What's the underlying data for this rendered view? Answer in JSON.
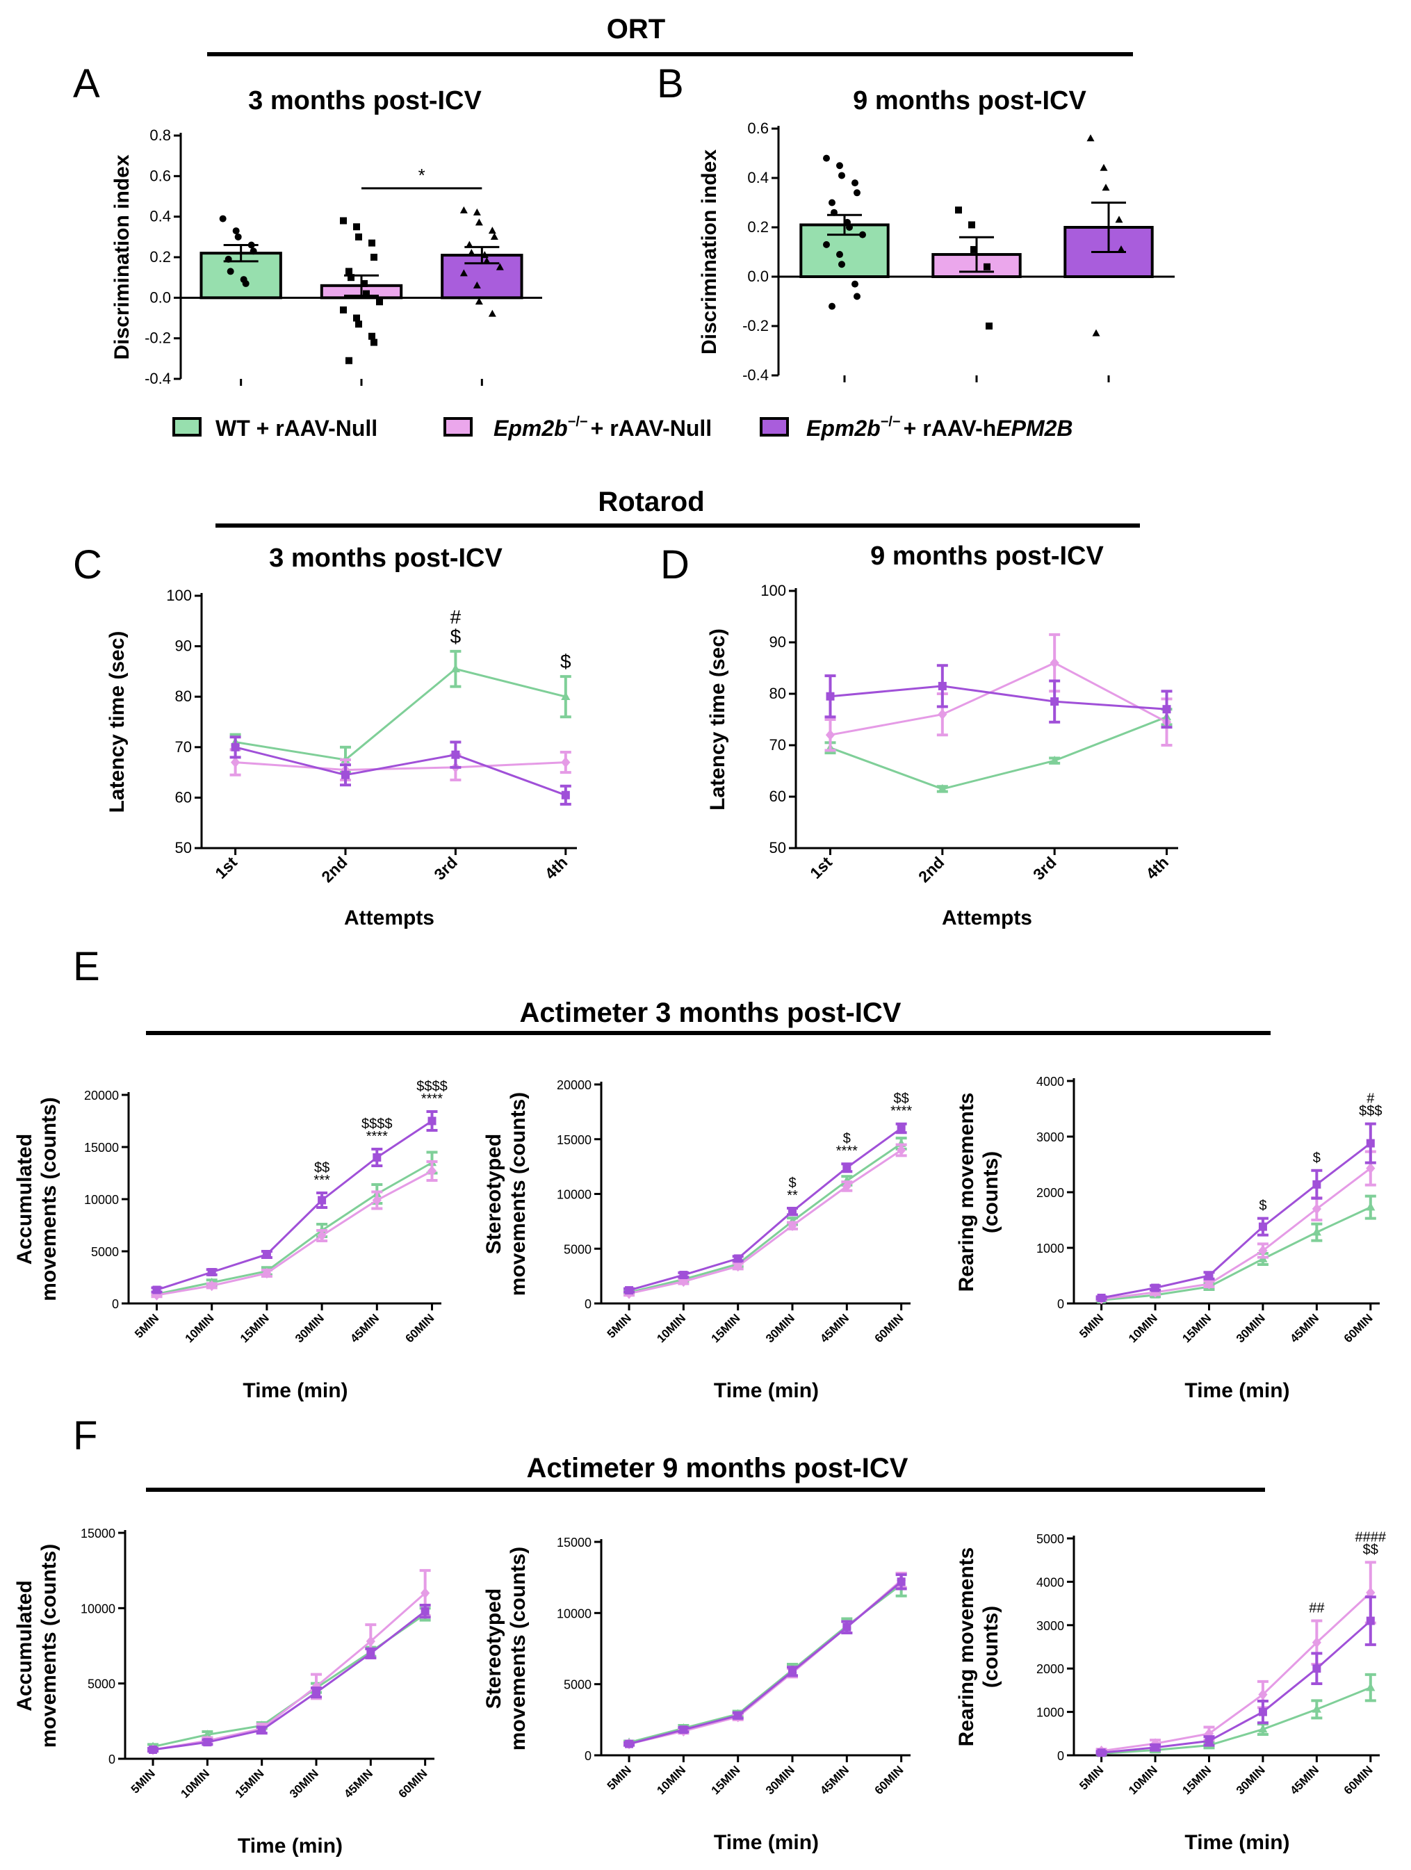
{
  "colors": {
    "wt": "#97DFAE",
    "null": "#EBA7EC",
    "hepm2b": "#A95DDC"
  },
  "sections": {
    "ort": "ORT",
    "rotarod": "Rotarod",
    "act3": "Actimeter 3 months post-ICV",
    "act9": "Actimeter 9 months post-ICV"
  },
  "legend": [
    {
      "key": "wt",
      "text": "WT + rAAV-Null"
    },
    {
      "key": "null",
      "text_prefix": "Epm2b",
      "text_sup": "−/−",
      "text_suffix": "+ rAAV-Null"
    },
    {
      "key": "hepm2b",
      "text_prefix": "Epm2b",
      "text_sup": "−/−",
      "text_suffix": "+ rAAV-h",
      "text_tail": "EPM2B"
    }
  ],
  "chart_data": [
    {
      "id": "A",
      "type": "bar",
      "letter": "A",
      "title": "3 months post-ICV",
      "ylabel": "Discrimination index",
      "xlabel": "",
      "ylim": [
        -0.4,
        0.8
      ],
      "yticks": [
        "-0.4",
        "-0.2",
        "0.0",
        "0.2",
        "0.4",
        "0.6",
        "0.8"
      ],
      "ytick_values": [
        -0.4,
        -0.2,
        0.0,
        0.2,
        0.4,
        0.6,
        0.8
      ],
      "bars": [
        {
          "group": "wt",
          "value": 0.22,
          "sem": 0.04,
          "points": [
            0.39,
            0.33,
            0.3,
            0.26,
            0.23,
            0.19,
            0.13,
            0.09,
            0.07
          ],
          "marker": "circle"
        },
        {
          "group": "null",
          "value": 0.06,
          "sem": 0.05,
          "points": [
            0.38,
            0.35,
            0.3,
            0.27,
            0.2,
            0.13,
            0.1,
            0.07,
            0.02,
            -0.02,
            -0.06,
            -0.1,
            -0.13,
            -0.19,
            -0.22,
            -0.31
          ],
          "marker": "square"
        },
        {
          "group": "hepm2b",
          "value": 0.21,
          "sem": 0.04,
          "points": [
            0.43,
            0.42,
            0.37,
            0.33,
            0.3,
            0.26,
            0.22,
            0.21,
            0.18,
            0.15,
            0.12,
            0.06,
            -0.02,
            -0.08
          ],
          "marker": "triangle"
        }
      ],
      "annotation": {
        "text": "*",
        "from": 1,
        "to": 2,
        "y": 0.54
      }
    },
    {
      "id": "B",
      "type": "bar",
      "letter": "B",
      "title": "9 months post-ICV",
      "ylabel": "Discrimination index",
      "xlabel": "",
      "ylim": [
        -0.4,
        0.6
      ],
      "yticks": [
        "-0.4",
        "-0.2",
        "0.0",
        "0.2",
        "0.4",
        "0.6"
      ],
      "ytick_values": [
        -0.4,
        -0.2,
        0.0,
        0.2,
        0.4,
        0.6
      ],
      "bars": [
        {
          "group": "wt",
          "value": 0.21,
          "sem": 0.04,
          "points": [
            0.48,
            0.45,
            0.41,
            0.38,
            0.34,
            0.3,
            0.26,
            0.22,
            0.2,
            0.17,
            0.13,
            0.09,
            0.05,
            -0.03,
            -0.08,
            -0.12
          ],
          "marker": "circle"
        },
        {
          "group": "null",
          "value": 0.09,
          "sem": 0.07,
          "points": [
            0.27,
            0.21,
            0.11,
            0.04,
            -0.2
          ],
          "marker": "square"
        },
        {
          "group": "hepm2b",
          "value": 0.2,
          "sem": 0.1,
          "points": [
            0.56,
            0.44,
            0.36,
            0.23,
            0.11,
            -0.23
          ],
          "marker": "triangle"
        }
      ]
    },
    {
      "id": "C",
      "type": "line",
      "letter": "C",
      "title": "3 months post-ICV",
      "ylabel": "Latency time (sec)",
      "xlabel": "Attempts",
      "categories": [
        "1st",
        "2nd",
        "3rd",
        "4th"
      ],
      "ylim": [
        50,
        100
      ],
      "yticks": [
        "50",
        "60",
        "70",
        "80",
        "90",
        "100"
      ],
      "ytick_values": [
        50,
        60,
        70,
        80,
        90,
        100
      ],
      "series": [
        {
          "group": "wt",
          "values": [
            71,
            67.5,
            85.5,
            80
          ],
          "sem": [
            1.5,
            2.5,
            3.5,
            4
          ]
        },
        {
          "group": "null",
          "values": [
            67,
            65.5,
            66,
            67
          ],
          "sem": [
            2.5,
            2,
            2.5,
            2
          ]
        },
        {
          "group": "hepm2b",
          "values": [
            70,
            64.5,
            68.5,
            60.5
          ],
          "sem": [
            2,
            2,
            2.5,
            1.8
          ]
        }
      ],
      "annotations": [
        {
          "index": 2,
          "lines": [
            "#",
            "$"
          ]
        },
        {
          "index": 3,
          "lines": [
            "$"
          ]
        }
      ]
    },
    {
      "id": "D",
      "type": "line",
      "letter": "D",
      "title": "9 months post-ICV",
      "ylabel": "Latency time (sec)",
      "xlabel": "Attempts",
      "categories": [
        "1st",
        "2nd",
        "3rd",
        "4th"
      ],
      "ylim": [
        50,
        100
      ],
      "yticks": [
        "50",
        "60",
        "70",
        "80",
        "90",
        "100"
      ],
      "ytick_values": [
        50,
        60,
        70,
        80,
        90,
        100
      ],
      "series": [
        {
          "group": "wt",
          "values": [
            69.5,
            61.5,
            67,
            75.5
          ],
          "sem": [
            1,
            0.5,
            0.5,
            1.5
          ]
        },
        {
          "group": "null",
          "values": [
            72,
            76,
            86,
            74.5
          ],
          "sem": [
            3,
            4,
            5.5,
            4.5
          ]
        },
        {
          "group": "hepm2b",
          "values": [
            79.5,
            81.5,
            78.5,
            77
          ],
          "sem": [
            4,
            4,
            4,
            3.5
          ]
        }
      ],
      "annotations": []
    },
    {
      "id": "E1",
      "type": "line",
      "letter": "E",
      "title": "",
      "ylabel": [
        "Accumulated",
        "movements (counts)"
      ],
      "xlabel": "Time (min)",
      "categories": [
        "5MIN",
        "10MIN",
        "15MIN",
        "30MIN",
        "45MIN",
        "60MIN"
      ],
      "ylim": [
        0,
        20000
      ],
      "yticks": [
        "0",
        "5000",
        "10000",
        "15000",
        "20000"
      ],
      "ytick_values": [
        0,
        5000,
        10000,
        15000,
        20000
      ],
      "series": [
        {
          "group": "wt",
          "values": [
            900,
            2000,
            3100,
            7000,
            10500,
            13500
          ],
          "sem": [
            150,
            250,
            350,
            600,
            900,
            1000
          ]
        },
        {
          "group": "null",
          "values": [
            800,
            1700,
            2900,
            6500,
            9900,
            12700
          ],
          "sem": [
            150,
            200,
            300,
            500,
            800,
            900
          ]
        },
        {
          "group": "hepm2b",
          "values": [
            1300,
            3000,
            4700,
            9900,
            14000,
            17500
          ],
          "sem": [
            200,
            250,
            300,
            700,
            800,
            900
          ]
        }
      ],
      "annotations": [
        {
          "index": 3,
          "lines": [
            "$$",
            "***"
          ]
        },
        {
          "index": 4,
          "lines": [
            "$$$$",
            "****"
          ]
        },
        {
          "index": 5,
          "lines": [
            "$$$$",
            "****"
          ]
        }
      ]
    },
    {
      "id": "E2",
      "type": "line",
      "letter": "",
      "title": "",
      "ylabel": [
        "Stereotyped",
        "movements (counts)"
      ],
      "xlabel": "Time (min)",
      "categories": [
        "5MIN",
        "10MIN",
        "15MIN",
        "30MIN",
        "45MIN",
        "60MIN"
      ],
      "ylim": [
        0,
        20000
      ],
      "yticks": [
        "0",
        "5000",
        "10000",
        "15000",
        "20000"
      ],
      "ytick_values": [
        0,
        5000,
        10000,
        15000,
        20000
      ],
      "series": [
        {
          "group": "wt",
          "values": [
            1000,
            2200,
            3600,
            7500,
            11200,
            14600
          ],
          "sem": [
            150,
            200,
            250,
            300,
            400,
            500
          ]
        },
        {
          "group": "null",
          "values": [
            900,
            2000,
            3400,
            7100,
            10700,
            14000
          ],
          "sem": [
            150,
            200,
            250,
            300,
            400,
            500
          ]
        },
        {
          "group": "hepm2b",
          "values": [
            1200,
            2600,
            4100,
            8400,
            12400,
            16000
          ],
          "sem": [
            150,
            200,
            200,
            300,
            350,
            400
          ]
        }
      ],
      "annotations": [
        {
          "index": 3,
          "lines": [
            "$",
            "**"
          ]
        },
        {
          "index": 4,
          "lines": [
            "$",
            "****"
          ]
        },
        {
          "index": 5,
          "lines": [
            "$$",
            "****"
          ]
        }
      ]
    },
    {
      "id": "E3",
      "type": "line",
      "letter": "",
      "title": "",
      "ylabel": [
        "Rearing movements",
        "(counts)"
      ],
      "xlabel": "Time (min)",
      "categories": [
        "5MIN",
        "10MIN",
        "15MIN",
        "30MIN",
        "45MIN",
        "60MIN"
      ],
      "ylim": [
        0,
        4000
      ],
      "yticks": [
        "0",
        "1000",
        "2000",
        "3000",
        "4000"
      ],
      "ytick_values": [
        0,
        1000,
        2000,
        3000,
        4000
      ],
      "series": [
        {
          "group": "wt",
          "values": [
            60,
            150,
            300,
            800,
            1280,
            1730
          ],
          "sem": [
            20,
            30,
            50,
            100,
            150,
            200
          ]
        },
        {
          "group": "null",
          "values": [
            80,
            200,
            350,
            950,
            1700,
            2430
          ],
          "sem": [
            20,
            40,
            50,
            120,
            200,
            300
          ]
        },
        {
          "group": "hepm2b",
          "values": [
            100,
            280,
            500,
            1380,
            2140,
            2880
          ],
          "sem": [
            20,
            40,
            60,
            150,
            250,
            350
          ]
        }
      ],
      "annotations": [
        {
          "index": 3,
          "lines": [
            "$"
          ]
        },
        {
          "index": 4,
          "lines": [
            "$"
          ]
        },
        {
          "index": 5,
          "lines": [
            "#",
            "$$$"
          ]
        }
      ]
    },
    {
      "id": "F1",
      "type": "line",
      "letter": "F",
      "title": "",
      "ylabel": [
        "Accumulated",
        "movements (counts)"
      ],
      "xlabel": "Time (min)",
      "categories": [
        "5MIN",
        "10MIN",
        "15MIN",
        "30MIN",
        "45MIN",
        "60MIN"
      ],
      "ylim": [
        0,
        15000
      ],
      "yticks": [
        "0",
        "5000",
        "10000",
        "15000"
      ],
      "ytick_values": [
        0,
        5000,
        10000,
        15000
      ],
      "series": [
        {
          "group": "wt",
          "values": [
            800,
            1600,
            2200,
            4700,
            7100,
            9600
          ],
          "sem": [
            150,
            200,
            200,
            300,
            300,
            400
          ]
        },
        {
          "group": "null",
          "values": [
            600,
            1200,
            2000,
            4800,
            7800,
            11000
          ],
          "sem": [
            100,
            200,
            300,
            800,
            1100,
            1500
          ]
        },
        {
          "group": "hepm2b",
          "values": [
            600,
            1100,
            1900,
            4400,
            7000,
            9800
          ],
          "sem": [
            100,
            150,
            200,
            300,
            300,
            400
          ]
        }
      ],
      "annotations": []
    },
    {
      "id": "F2",
      "type": "line",
      "letter": "",
      "title": "",
      "ylabel": [
        "Stereotyped",
        "movements (counts)"
      ],
      "xlabel": "Time (min)",
      "categories": [
        "5MIN",
        "10MIN",
        "15MIN",
        "30MIN",
        "45MIN",
        "60MIN"
      ],
      "ylim": [
        0,
        15000
      ],
      "yticks": [
        "0",
        "5000",
        "10000",
        "15000"
      ],
      "ytick_values": [
        0,
        5000,
        10000,
        15000
      ],
      "series": [
        {
          "group": "wt",
          "values": [
            900,
            1900,
            2900,
            6000,
            9100,
            12000
          ],
          "sem": [
            100,
            200,
            200,
            400,
            500,
            800
          ]
        },
        {
          "group": "null",
          "values": [
            800,
            1700,
            2700,
            5800,
            9000,
            12300
          ],
          "sem": [
            100,
            150,
            200,
            300,
            400,
            500
          ]
        },
        {
          "group": "hepm2b",
          "values": [
            800,
            1800,
            2800,
            5900,
            9000,
            12200
          ],
          "sem": [
            100,
            150,
            200,
            300,
            400,
            500
          ]
        }
      ],
      "annotations": []
    },
    {
      "id": "F3",
      "type": "line",
      "letter": "",
      "title": "",
      "ylabel": [
        "Rearing movements",
        "(counts)"
      ],
      "xlabel": "Time (min)",
      "categories": [
        "5MIN",
        "10MIN",
        "15MIN",
        "30MIN",
        "45MIN",
        "60MIN"
      ],
      "ylim": [
        0,
        5000
      ],
      "yticks": [
        "0",
        "1000",
        "2000",
        "3000",
        "4000",
        "5000"
      ],
      "ytick_values": [
        0,
        1000,
        2000,
        3000,
        4000,
        5000
      ],
      "series": [
        {
          "group": "wt",
          "values": [
            40,
            120,
            230,
            600,
            1060,
            1560
          ],
          "sem": [
            20,
            40,
            60,
            120,
            200,
            300
          ]
        },
        {
          "group": "null",
          "values": [
            100,
            270,
            500,
            1400,
            2600,
            3750
          ],
          "sem": [
            40,
            80,
            150,
            300,
            500,
            700
          ]
        },
        {
          "group": "hepm2b",
          "values": [
            60,
            180,
            330,
            1000,
            2000,
            3100
          ],
          "sem": [
            30,
            60,
            100,
            250,
            350,
            550
          ]
        }
      ],
      "annotations": [
        {
          "index": 4,
          "lines": [
            "##"
          ]
        },
        {
          "index": 5,
          "lines": [
            "####",
            "$$"
          ]
        }
      ]
    }
  ]
}
